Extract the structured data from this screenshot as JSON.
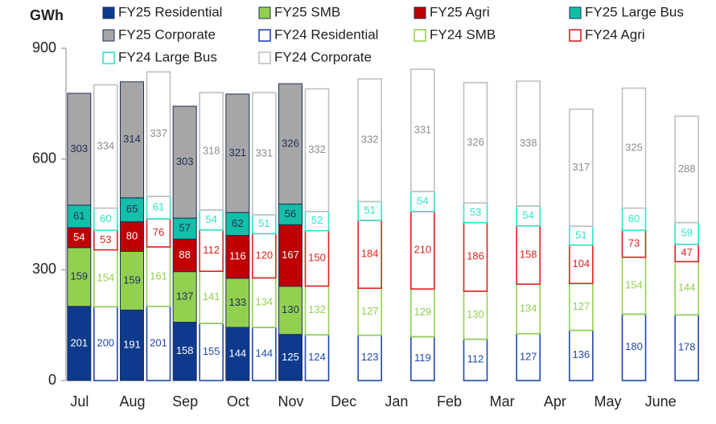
{
  "chart_data": {
    "type": "stacked-bar",
    "y_label": "GWh",
    "categories": [
      "Jul",
      "Aug",
      "Sep",
      "Oct",
      "Nov",
      "Dec",
      "Jan",
      "Feb",
      "Mar",
      "Apr",
      "May",
      "June"
    ],
    "ylim": [
      0,
      900
    ],
    "yticks": [
      0,
      300,
      600,
      900
    ],
    "series": [
      {
        "name": "FY25 Residential",
        "color": "#0d3a8c",
        "stack": "FY25",
        "filled": true,
        "values": [
          201,
          191,
          158,
          144,
          125,
          null,
          null,
          null,
          null,
          null,
          null,
          null
        ]
      },
      {
        "name": "FY25 SMB",
        "color": "#92d050",
        "stack": "FY25",
        "filled": true,
        "values": [
          159,
          159,
          137,
          133,
          130,
          null,
          null,
          null,
          null,
          null,
          null,
          null
        ]
      },
      {
        "name": "FY25 Agri",
        "color": "#c00000",
        "stack": "FY25",
        "filled": true,
        "values": [
          54,
          80,
          88,
          116,
          167,
          null,
          null,
          null,
          null,
          null,
          null,
          null
        ]
      },
      {
        "name": "FY25 Large Bus",
        "color": "#13bfa6",
        "stack": "FY25",
        "filled": true,
        "values": [
          61,
          65,
          57,
          62,
          56,
          null,
          null,
          null,
          null,
          null,
          null,
          null
        ]
      },
      {
        "name": "FY25 Corporate",
        "color": "#a6a6a6",
        "stack": "FY25",
        "filled": true,
        "values": [
          303,
          314,
          303,
          321,
          326,
          null,
          null,
          null,
          null,
          null,
          null,
          null
        ]
      },
      {
        "name": "FY24 Residential",
        "color": "#1f47b0",
        "stack": "FY24",
        "filled": false,
        "values": [
          200,
          201,
          155,
          144,
          124,
          123,
          119,
          112,
          127,
          136,
          180,
          178
        ]
      },
      {
        "name": "FY24 SMB",
        "color": "#92d050",
        "stack": "FY24",
        "filled": false,
        "values": [
          154,
          161,
          141,
          134,
          132,
          127,
          129,
          130,
          134,
          127,
          154,
          144
        ]
      },
      {
        "name": "FY24 Agri",
        "color": "#e02020",
        "stack": "FY24",
        "filled": false,
        "values": [
          53,
          76,
          112,
          120,
          150,
          184,
          210,
          186,
          158,
          104,
          73,
          47
        ]
      },
      {
        "name": "FY24 Large Bus",
        "color": "#2ee6c8",
        "stack": "FY24",
        "filled": false,
        "values": [
          60,
          61,
          54,
          51,
          52,
          51,
          54,
          53,
          54,
          51,
          60,
          59
        ]
      },
      {
        "name": "FY24 Corporate",
        "color": "#bfbfbf",
        "stack": "FY24",
        "filled": false,
        "values": [
          334,
          337,
          318,
          331,
          332,
          332,
          331,
          326,
          338,
          317,
          325,
          288
        ]
      }
    ]
  }
}
